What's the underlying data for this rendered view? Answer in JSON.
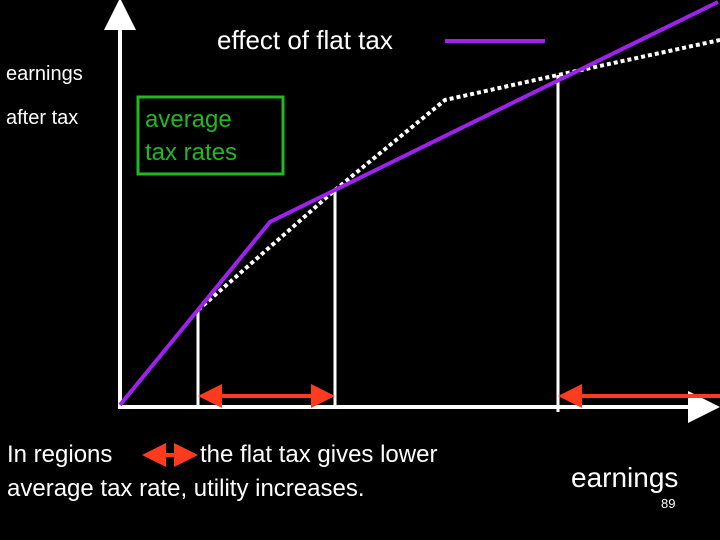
{
  "title": "effect of flat tax",
  "y_axis_label": [
    "earnings",
    "after tax"
  ],
  "box_label": [
    "average",
    "tax rates"
  ],
  "caption": {
    "before_arrow": "In regions",
    "after_arrow": "the flat tax gives lower",
    "line2": "average tax rate, utility increases."
  },
  "x_axis_label": "earnings",
  "page_number": "89"
}
